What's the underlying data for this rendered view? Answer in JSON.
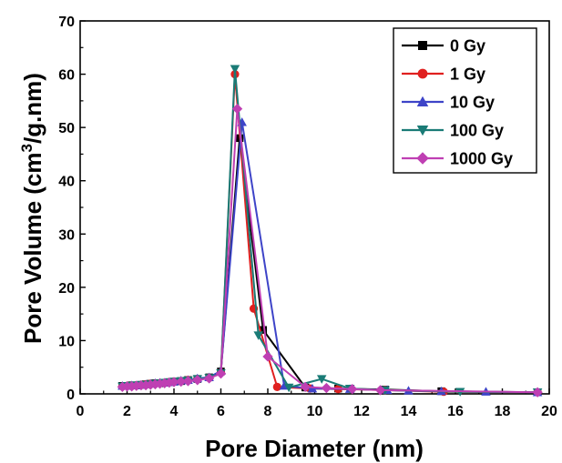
{
  "chart_data": {
    "type": "line",
    "title": "",
    "xlabel": "Pore Diameter (nm)",
    "ylabel": "Pore Volume (cm³/g.nm)",
    "ylabel_parts": {
      "pre": "Pore Volume (cm",
      "sup": "3",
      "post": "/g.nm)"
    },
    "xlim": [
      0,
      20
    ],
    "ylim": [
      0,
      70
    ],
    "xticks": [
      0,
      2,
      4,
      6,
      8,
      10,
      12,
      14,
      16,
      18,
      20
    ],
    "yticks": [
      0,
      10,
      20,
      30,
      40,
      50,
      60,
      70
    ],
    "grid": false,
    "legend_position": "top-right",
    "series": [
      {
        "name": "0 Gy",
        "color": "#000000",
        "marker": "square",
        "x": [
          1.8,
          2.0,
          2.2,
          2.4,
          2.6,
          2.8,
          3.0,
          3.2,
          3.4,
          3.6,
          3.8,
          4.0,
          4.3,
          4.6,
          5.0,
          5.5,
          6.0,
          6.8,
          7.8,
          9.6,
          11.0,
          13.0,
          15.4,
          19.5
        ],
        "y": [
          1.5,
          1.5,
          1.6,
          1.6,
          1.7,
          1.8,
          1.9,
          2.0,
          2.0,
          2.1,
          2.2,
          2.3,
          2.4,
          2.6,
          2.8,
          3.1,
          4.2,
          48,
          12,
          1.2,
          1.0,
          0.8,
          0.5,
          0.3
        ]
      },
      {
        "name": "1 Gy",
        "color": "#e0201f",
        "marker": "circle",
        "x": [
          1.8,
          2.0,
          2.2,
          2.4,
          2.6,
          2.8,
          3.0,
          3.2,
          3.4,
          3.6,
          3.8,
          4.0,
          4.3,
          4.6,
          5.0,
          5.5,
          6.0,
          6.6,
          7.4,
          8.4,
          9.8,
          11.0,
          13.0,
          15.5,
          19.5
        ],
        "y": [
          1.4,
          1.5,
          1.5,
          1.6,
          1.7,
          1.8,
          1.9,
          1.9,
          2.0,
          2.1,
          2.2,
          2.3,
          2.4,
          2.6,
          2.8,
          3.0,
          4.0,
          60,
          16,
          1.3,
          1.0,
          0.9,
          0.7,
          0.4,
          0.3
        ]
      },
      {
        "name": "10 Gy",
        "color": "#3e44c8",
        "marker": "triangle-up",
        "x": [
          1.8,
          2.0,
          2.2,
          2.4,
          2.6,
          2.8,
          3.0,
          3.2,
          3.4,
          3.6,
          3.8,
          4.0,
          4.3,
          4.6,
          5.0,
          5.5,
          6.0,
          6.9,
          8.7,
          9.9,
          11.5,
          13.1,
          14.0,
          15.4,
          17.3,
          19.5
        ],
        "y": [
          1.5,
          1.5,
          1.6,
          1.6,
          1.7,
          1.8,
          1.9,
          2.0,
          2.1,
          2.1,
          2.2,
          2.3,
          2.5,
          2.6,
          2.9,
          3.1,
          4.3,
          51,
          1.5,
          1.0,
          0.9,
          0.7,
          0.6,
          0.5,
          0.4,
          0.3
        ]
      },
      {
        "name": "100 Gy",
        "color": "#1a7b76",
        "marker": "triangle-down",
        "x": [
          1.8,
          2.0,
          2.2,
          2.4,
          2.6,
          2.8,
          3.0,
          3.2,
          3.4,
          3.6,
          3.8,
          4.0,
          4.3,
          4.6,
          5.0,
          5.5,
          6.0,
          6.6,
          7.6,
          8.9,
          10.3,
          11.5,
          13.0,
          16.2,
          19.5
        ],
        "y": [
          1.4,
          1.5,
          1.5,
          1.6,
          1.7,
          1.7,
          1.8,
          1.9,
          2.0,
          2.1,
          2.2,
          2.3,
          2.4,
          2.5,
          2.8,
          3.0,
          3.9,
          61,
          11,
          1.2,
          2.8,
          1.0,
          0.7,
          0.4,
          0.3
        ]
      },
      {
        "name": "1000 Gy",
        "color": "#bf3fb3",
        "marker": "diamond",
        "x": [
          1.8,
          2.0,
          2.2,
          2.4,
          2.6,
          2.8,
          3.0,
          3.2,
          3.4,
          3.6,
          3.8,
          4.0,
          4.3,
          4.6,
          5.0,
          5.5,
          6.0,
          6.7,
          8.0,
          9.6,
          10.5,
          11.6,
          12.8,
          19.5
        ],
        "y": [
          1.3,
          1.4,
          1.4,
          1.5,
          1.6,
          1.6,
          1.7,
          1.8,
          1.9,
          2.0,
          2.1,
          2.2,
          2.3,
          2.4,
          2.6,
          2.9,
          3.8,
          53.5,
          7,
          1.3,
          1.1,
          0.9,
          0.7,
          0.3
        ]
      }
    ]
  }
}
